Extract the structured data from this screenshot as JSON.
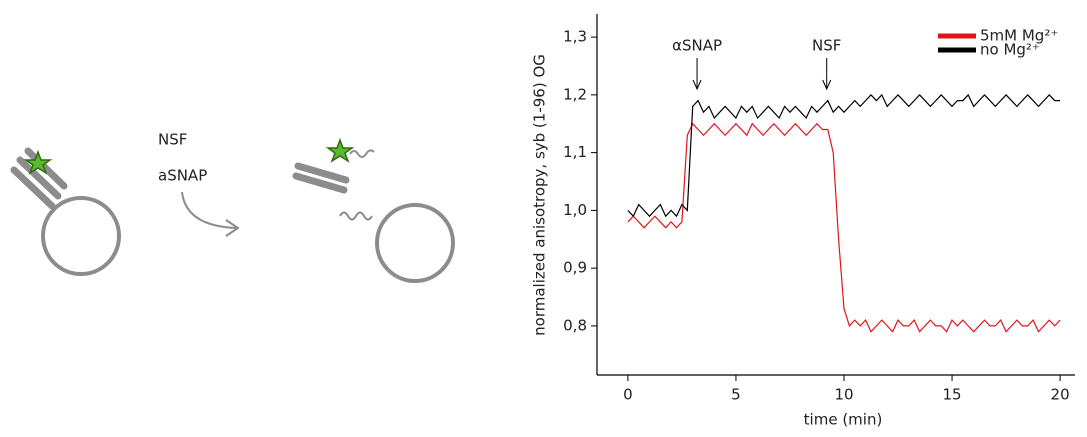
{
  "diagram": {
    "labels": [
      "NSF",
      "aSNAP"
    ]
  },
  "chart_data": {
    "type": "line",
    "xlabel": "time (min)",
    "ylabel": "normalized anisotropy, syb (1-96) OG",
    "x": [
      0,
      0.25,
      0.5,
      0.75,
      1,
      1.25,
      1.5,
      1.75,
      2,
      2.25,
      2.5,
      2.75,
      3,
      3.25,
      3.5,
      3.75,
      4,
      4.25,
      4.5,
      4.75,
      5,
      5.25,
      5.5,
      5.75,
      6,
      6.25,
      6.5,
      6.75,
      7,
      7.25,
      7.5,
      7.75,
      8,
      8.25,
      8.5,
      8.75,
      9,
      9.25,
      9.5,
      9.75,
      10,
      10.25,
      10.5,
      10.75,
      11,
      11.25,
      11.5,
      11.75,
      12,
      12.25,
      12.5,
      12.75,
      13,
      13.25,
      13.5,
      13.75,
      14,
      14.25,
      14.5,
      14.75,
      15,
      15.25,
      15.5,
      15.75,
      16,
      16.25,
      16.5,
      16.75,
      17,
      17.25,
      17.5,
      17.75,
      18,
      18.25,
      18.5,
      18.75,
      19,
      19.25,
      19.5,
      19.75,
      20
    ],
    "series": [
      {
        "name": "5mM Mg²⁺",
        "color": "#e3131b",
        "values": [
          0.98,
          0.99,
          0.98,
          0.97,
          0.98,
          0.99,
          0.98,
          0.97,
          0.98,
          0.97,
          0.98,
          1.13,
          1.15,
          1.14,
          1.13,
          1.14,
          1.15,
          1.14,
          1.13,
          1.14,
          1.15,
          1.14,
          1.13,
          1.15,
          1.14,
          1.13,
          1.14,
          1.15,
          1.14,
          1.13,
          1.14,
          1.15,
          1.14,
          1.13,
          1.14,
          1.15,
          1.14,
          1.14,
          1.1,
          0.95,
          0.83,
          0.8,
          0.81,
          0.8,
          0.81,
          0.79,
          0.8,
          0.81,
          0.8,
          0.79,
          0.81,
          0.8,
          0.8,
          0.81,
          0.79,
          0.8,
          0.81,
          0.8,
          0.8,
          0.79,
          0.81,
          0.8,
          0.81,
          0.8,
          0.79,
          0.8,
          0.81,
          0.8,
          0.8,
          0.81,
          0.79,
          0.8,
          0.81,
          0.8,
          0.8,
          0.81,
          0.79,
          0.8,
          0.81,
          0.8,
          0.81
        ]
      },
      {
        "name": "no Mg²⁺",
        "color": "#000000",
        "values": [
          1.0,
          0.99,
          1.01,
          1.0,
          0.99,
          1.0,
          1.01,
          0.99,
          1.0,
          0.99,
          1.01,
          1.0,
          1.18,
          1.19,
          1.17,
          1.18,
          1.16,
          1.17,
          1.18,
          1.17,
          1.16,
          1.18,
          1.17,
          1.18,
          1.16,
          1.17,
          1.18,
          1.17,
          1.16,
          1.18,
          1.17,
          1.18,
          1.17,
          1.16,
          1.18,
          1.17,
          1.18,
          1.19,
          1.17,
          1.18,
          1.17,
          1.18,
          1.19,
          1.18,
          1.19,
          1.2,
          1.19,
          1.2,
          1.18,
          1.19,
          1.2,
          1.19,
          1.18,
          1.19,
          1.2,
          1.19,
          1.18,
          1.19,
          1.2,
          1.19,
          1.18,
          1.19,
          1.19,
          1.2,
          1.18,
          1.19,
          1.2,
          1.19,
          1.18,
          1.19,
          1.2,
          1.19,
          1.18,
          1.19,
          1.2,
          1.19,
          1.18,
          1.19,
          1.2,
          1.19,
          1.19
        ]
      }
    ],
    "annotations": [
      {
        "text": "αSNAP",
        "x": 3.2
      },
      {
        "text": "NSF",
        "x": 9.2
      }
    ],
    "xlim": [
      -1.43,
      20.69
    ],
    "ylim": [
      0.715,
      1.34
    ],
    "xticks": [
      0,
      5,
      10,
      15,
      20
    ],
    "yticks": [
      {
        "value": 0.8,
        "label": "0,8"
      },
      {
        "value": 0.9,
        "label": "0,9"
      },
      {
        "value": 1.0,
        "label": "1,0"
      },
      {
        "value": 1.1,
        "label": "1,1"
      },
      {
        "value": 1.2,
        "label": "1,2"
      },
      {
        "value": 1.3,
        "label": "1,3"
      }
    ],
    "legend": "upper right",
    "grid": false
  }
}
